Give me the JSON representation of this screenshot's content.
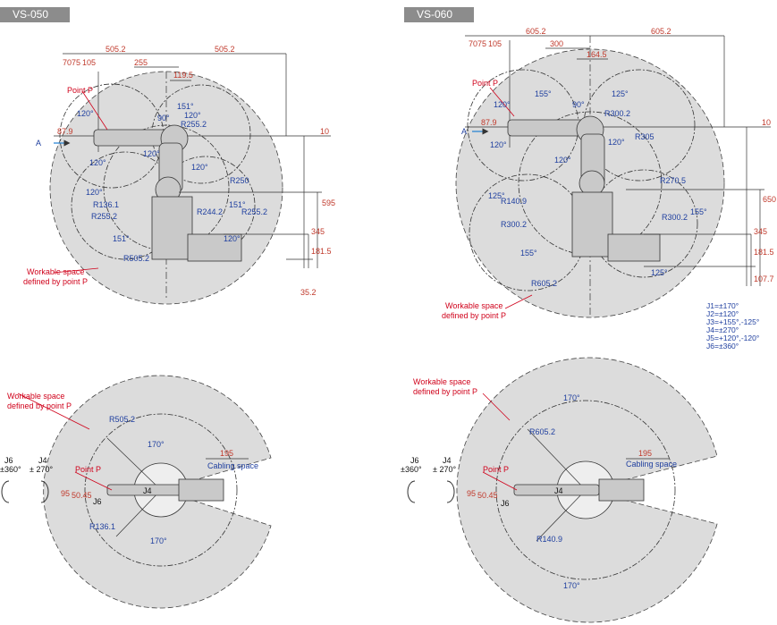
{
  "models": [
    {
      "name": "VS-050",
      "side": {
        "top_dims": [
          "505.2",
          "505.2",
          "255",
          "119.5"
        ],
        "offsets": [
          "70",
          "75",
          "105"
        ],
        "point_p": "Point P",
        "axis_marker": "A",
        "height_87": "87.9",
        "vert_dims": [
          "10",
          "595",
          "345",
          "181.5",
          "35.2"
        ],
        "angles": [
          "120°",
          "120°",
          "151°",
          "120°",
          "90°",
          "120°",
          "120°",
          "120°",
          "151°",
          "151°",
          "120°"
        ],
        "radii": [
          "R255.2",
          "R250",
          "R136.1",
          "R255.2",
          "R244.2",
          "R255.2",
          "R505.2"
        ],
        "workable": [
          "Workable space",
          "defined by point P"
        ]
      },
      "top": {
        "workable": [
          "Workable space",
          "defined by point P"
        ],
        "j6": "J6",
        "j6_range": "±360°",
        "j4": "J4",
        "j4_range": "± 270°",
        "radius_outer": "R505.2",
        "radius_inner": "R136.1",
        "angle_top": "170°",
        "angle_bottom": "170°",
        "cable_dim": "195",
        "cable_label": "Cabling space",
        "point_p": "Point P",
        "height_dims": [
          "95",
          "50.45"
        ],
        "j6_label": "J6",
        "j4_label": "J4"
      }
    },
    {
      "name": "VS-060",
      "side": {
        "top_dims": [
          "605.2",
          "605.2",
          "300",
          "164.5"
        ],
        "offsets": [
          "70",
          "75",
          "105"
        ],
        "point_p": "Point P",
        "axis_marker": "A",
        "height_87": "87.9",
        "vert_dims": [
          "10",
          "650",
          "345",
          "181.5",
          "107.7"
        ],
        "angles": [
          "120°",
          "155°",
          "125°",
          "90°",
          "120°",
          "120°",
          "120°",
          "155°",
          "125°",
          "155°",
          "125°"
        ],
        "radii": [
          "R300.2",
          "R305",
          "R270.5",
          "R140.9",
          "R300.2",
          "R300.2",
          "R605.2"
        ],
        "workable": [
          "Workable space",
          "defined by point P"
        ],
        "joint_specs": [
          "J1=±170°",
          "J2=±120°",
          "J3=+155°,-125°",
          "J4=±270°",
          "J5=+120°,-120°",
          "J6=±360°"
        ]
      },
      "top": {
        "workable": [
          "Workable space",
          "defined by point P"
        ],
        "j6": "J6",
        "j6_range": "±360°",
        "j4": "J4",
        "j4_range": "± 270°",
        "radius_outer": "R605.2",
        "radius_inner": "R140.9",
        "angle_top": "170°",
        "angle_bottom": "170°",
        "cable_dim": "195",
        "cable_label": "Cabling space",
        "point_p": "Point P",
        "height_dims": [
          "95",
          "50.45"
        ],
        "j6_label": "J6",
        "j4_label": "J4"
      }
    }
  ]
}
